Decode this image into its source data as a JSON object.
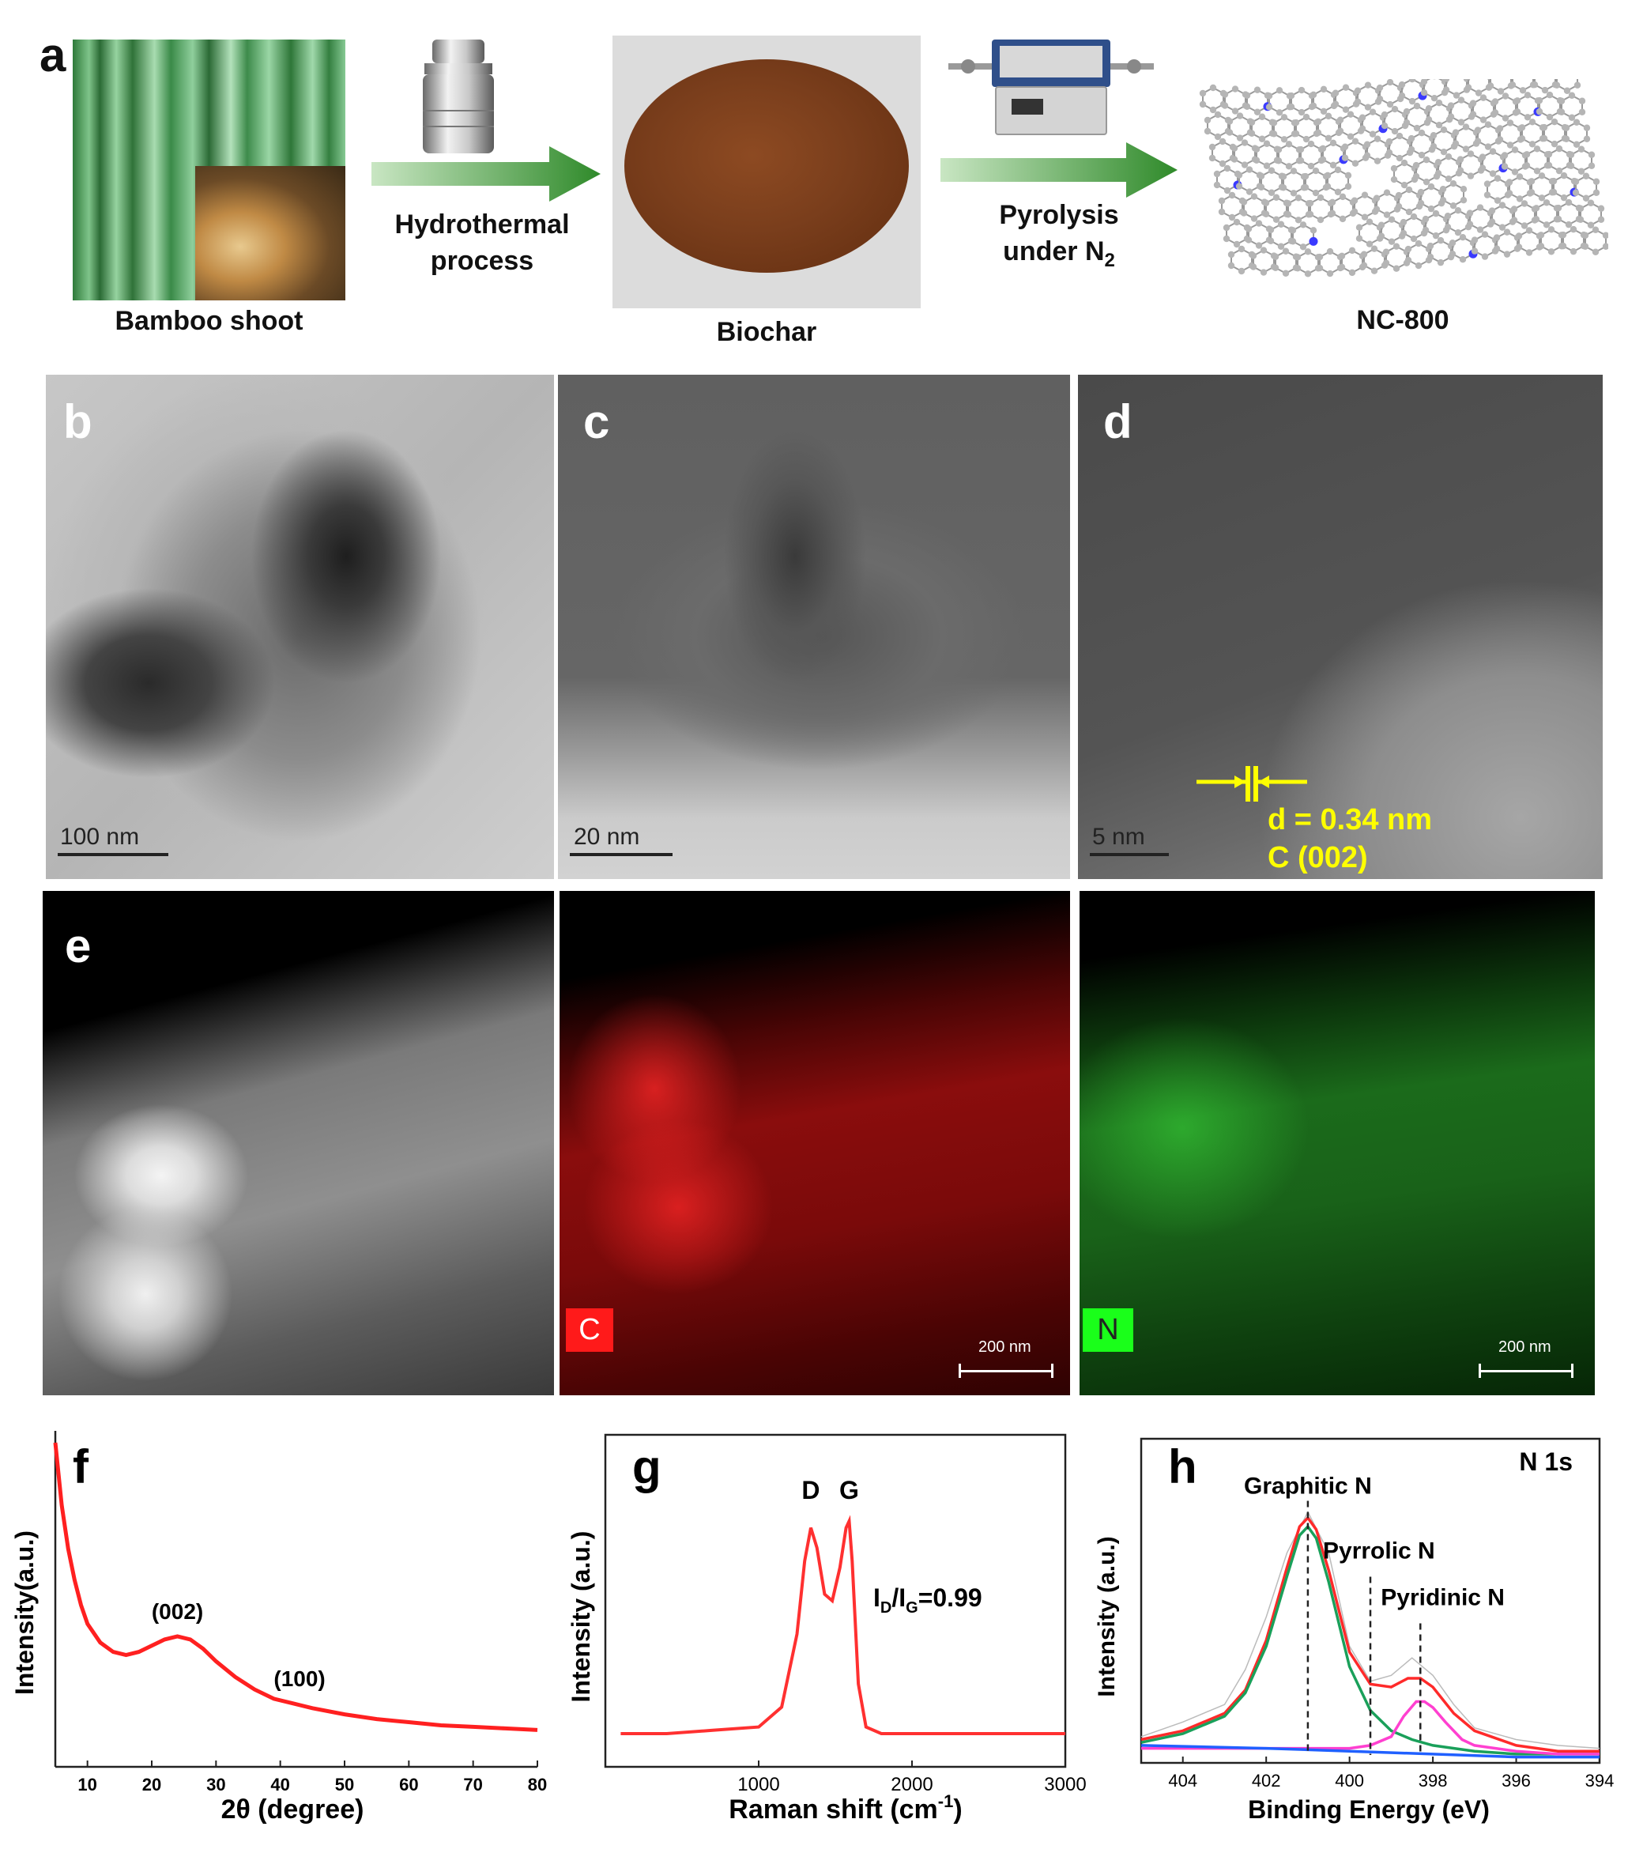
{
  "panel_a": {
    "label": "a",
    "bamboo_caption": "Bamboo shoot",
    "step1_label_line1": "Hydrothermal",
    "step1_label_line2": "process",
    "biochar_caption": "Biochar",
    "step2_label_line1": "Pyrolysis",
    "step2_label_line2": "under N",
    "step2_label_sub": "2",
    "product_caption": "NC-800",
    "colors": {
      "arrow": "#2f8a2a",
      "biochar": "#7a3e1c",
      "carbon_atom": "#b5b5b5",
      "nitrogen_atom": "#3a3aff"
    }
  },
  "tem": {
    "b": {
      "label": "b",
      "scale": "100 nm"
    },
    "c": {
      "label": "c",
      "scale": "20 nm"
    },
    "d": {
      "label": "d",
      "scale": "5 nm",
      "annotation_line1": "d = 0.34 nm",
      "annotation_line2": "C (002)",
      "annotation_color": "#ffff00"
    }
  },
  "mapping": {
    "e_label": "e",
    "carbon_tag": "C",
    "nitrogen_tag": "N",
    "scale_c": "200 nm",
    "scale_n": "200 nm",
    "colors": {
      "carbon": "#ff1a1a",
      "nitrogen": "#1aff1a"
    }
  },
  "chart_data": [
    {
      "panel": "f",
      "type": "line",
      "xlabel": "2θ (degree)",
      "ylabel": "Intensity(a.u.)",
      "xlim": [
        5,
        80
      ],
      "xticks": [
        10,
        20,
        30,
        40,
        50,
        60,
        70,
        80
      ],
      "color": "#ff2020",
      "annotations": [
        {
          "text": "(002)",
          "x": 24
        },
        {
          "text": "(100)",
          "x": 43
        }
      ],
      "x": [
        5,
        6,
        7,
        8,
        9,
        10,
        12,
        14,
        16,
        18,
        20,
        22,
        24,
        26,
        28,
        30,
        33,
        36,
        39,
        42,
        45,
        50,
        55,
        60,
        65,
        70,
        75,
        80
      ],
      "y": [
        1.0,
        0.8,
        0.66,
        0.56,
        0.48,
        0.42,
        0.36,
        0.33,
        0.32,
        0.33,
        0.35,
        0.37,
        0.38,
        0.37,
        0.34,
        0.3,
        0.25,
        0.21,
        0.18,
        0.165,
        0.15,
        0.13,
        0.115,
        0.105,
        0.095,
        0.09,
        0.085,
        0.08
      ]
    },
    {
      "panel": "g",
      "type": "line",
      "xlabel": "Raman shift (cm",
      "xlabel_sup": "-1",
      "xlabel_end": ")",
      "ylabel": "Intensity (a.u.)",
      "xlim": [
        0,
        3000
      ],
      "xticks": [
        1000,
        2000,
        3000
      ],
      "xtick_labels_extra": "",
      "color": "#ff3030",
      "peaks": [
        {
          "text": "D",
          "x": 1340
        },
        {
          "text": "G",
          "x": 1590
        }
      ],
      "ratio_label": "I",
      "ratio_sub_d": "D",
      "ratio_mid": "/I",
      "ratio_sub_g": "G",
      "ratio_value": "=0.99",
      "x": [
        100,
        400,
        700,
        1000,
        1150,
        1250,
        1300,
        1340,
        1380,
        1430,
        1480,
        1530,
        1570,
        1590,
        1610,
        1650,
        1700,
        1800,
        2000,
        2300,
        2600,
        3000
      ],
      "y": [
        0.1,
        0.1,
        0.11,
        0.12,
        0.18,
        0.4,
        0.62,
        0.72,
        0.66,
        0.52,
        0.5,
        0.6,
        0.72,
        0.74,
        0.62,
        0.25,
        0.12,
        0.1,
        0.1,
        0.1,
        0.1,
        0.1
      ]
    },
    {
      "panel": "h",
      "type": "line",
      "title": "N 1s",
      "xlabel": "Binding Energy (eV)",
      "ylabel": "Intensity (a.u.)",
      "xlim": [
        405,
        394
      ],
      "xticks": [
        404,
        402,
        400,
        398,
        396,
        394
      ],
      "peaks": [
        {
          "text": "Graphitic N",
          "x": 401.0
        },
        {
          "text": "Pyrrolic N",
          "x": 399.5
        },
        {
          "text": "Pyridinic N",
          "x": 398.3
        }
      ],
      "series": [
        {
          "color": "#bbbbbb",
          "x": [
            405,
            404,
            403,
            402.5,
            402,
            401.5,
            401,
            400.5,
            400,
            399.5,
            399,
            398.5,
            398,
            397.5,
            397,
            396,
            395,
            394
          ],
          "y": [
            0.09,
            0.14,
            0.2,
            0.32,
            0.5,
            0.72,
            0.86,
            0.72,
            0.4,
            0.28,
            0.3,
            0.36,
            0.3,
            0.2,
            0.12,
            0.08,
            0.06,
            0.05
          ]
        },
        {
          "color": "#ff2a2a",
          "x": [
            405,
            404,
            403,
            402.5,
            402,
            401.5,
            401.2,
            401,
            400.8,
            400.5,
            400,
            399.5,
            399,
            398.6,
            398.3,
            398,
            397.5,
            397,
            396,
            395,
            394
          ],
          "y": [
            0.08,
            0.11,
            0.17,
            0.25,
            0.42,
            0.67,
            0.81,
            0.84,
            0.8,
            0.66,
            0.38,
            0.27,
            0.26,
            0.29,
            0.29,
            0.26,
            0.17,
            0.11,
            0.06,
            0.04,
            0.04
          ]
        },
        {
          "color": "#1aa05a",
          "x": [
            405,
            404,
            403,
            402.5,
            402,
            401.5,
            401.2,
            401,
            400.8,
            400.5,
            400,
            399.5,
            399,
            398.5,
            398,
            397,
            396,
            395,
            394
          ],
          "y": [
            0.07,
            0.1,
            0.16,
            0.24,
            0.4,
            0.64,
            0.78,
            0.81,
            0.77,
            0.62,
            0.33,
            0.18,
            0.11,
            0.08,
            0.06,
            0.04,
            0.03,
            0.03,
            0.03
          ]
        },
        {
          "color": "#ff40d0",
          "x": [
            405,
            402,
            400,
            399.5,
            399,
            398.7,
            398.4,
            398.2,
            398,
            397.7,
            397.3,
            397,
            396,
            395,
            394
          ],
          "y": [
            0.05,
            0.05,
            0.05,
            0.06,
            0.09,
            0.16,
            0.21,
            0.21,
            0.19,
            0.14,
            0.08,
            0.06,
            0.04,
            0.03,
            0.03
          ]
        },
        {
          "color": "#2060ff",
          "x": [
            405,
            402,
            400,
            398,
            396,
            394
          ],
          "y": [
            0.06,
            0.05,
            0.04,
            0.03,
            0.02,
            0.02
          ]
        }
      ]
    }
  ]
}
